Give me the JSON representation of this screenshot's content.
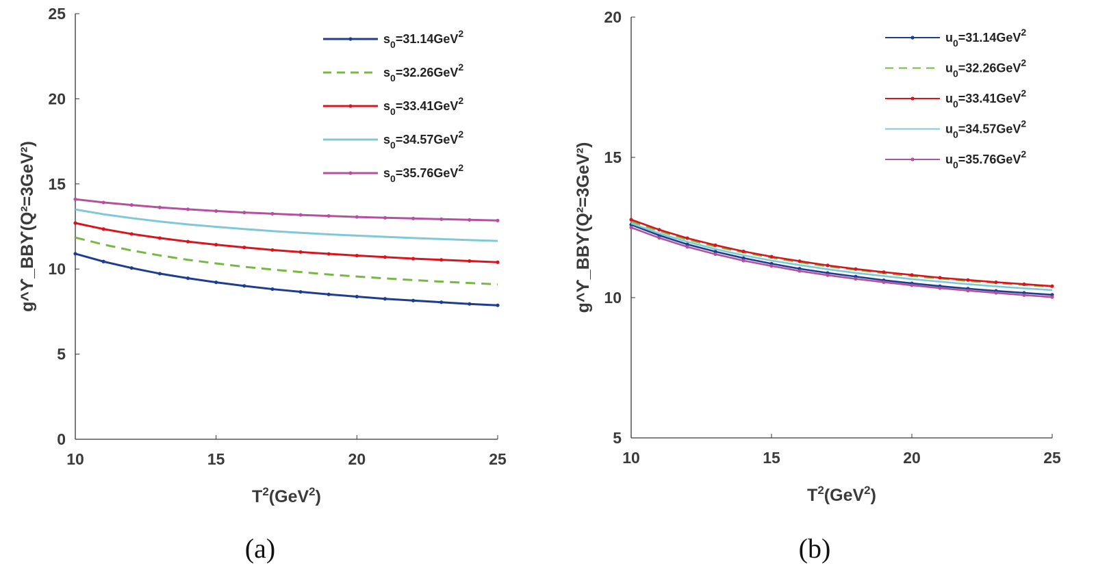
{
  "chart_data": [
    {
      "type": "line",
      "panel": "(a)",
      "xlabel": "T²(GeV²)",
      "ylabel": "g^ϒ_BBϒ(Q²=3GeV²)",
      "xlim": [
        10,
        25
      ],
      "ylim": [
        0,
        25
      ],
      "xticks": [
        10,
        15,
        20,
        25
      ],
      "yticks": [
        0,
        5,
        10,
        15,
        20,
        25
      ],
      "legend": "top-right",
      "x": [
        10,
        11,
        12,
        13,
        14,
        15,
        16,
        17,
        18,
        19,
        20,
        21,
        22,
        23,
        24,
        25
      ],
      "series": [
        {
          "name": "s₀=31.14GeV²",
          "label_base": "s",
          "sub": "0",
          "label_val": "=31.14GeV",
          "color": "#1f3c8f",
          "style": "solid",
          "markers": true,
          "values": [
            10.9,
            10.44,
            10.06,
            9.73,
            9.46,
            9.22,
            9.01,
            8.82,
            8.66,
            8.51,
            8.38,
            8.25,
            8.15,
            8.05,
            7.95,
            7.87
          ]
        },
        {
          "name": "s₀=32.26GeV²",
          "label_base": "s",
          "sub": "0",
          "label_val": "=32.26GeV",
          "color": "#77b843",
          "style": "dashed",
          "markers": false,
          "values": [
            11.85,
            11.44,
            11.09,
            10.8,
            10.54,
            10.33,
            10.13,
            9.97,
            9.82,
            9.68,
            9.56,
            9.45,
            9.35,
            9.26,
            9.18,
            9.1
          ]
        },
        {
          "name": "s₀=33.41GeV²",
          "label_base": "s",
          "sub": "0",
          "label_val": "=33.41GeV",
          "color": "#d9141c",
          "style": "solid",
          "markers": true,
          "values": [
            12.7,
            12.35,
            12.06,
            11.82,
            11.61,
            11.43,
            11.27,
            11.12,
            11.0,
            10.89,
            10.79,
            10.7,
            10.61,
            10.54,
            10.47,
            10.4
          ]
        },
        {
          "name": "s₀=34.57GeV²",
          "label_base": "s",
          "sub": "0",
          "label_val": "=34.57GeV",
          "color": "#7ec8d8",
          "style": "solid",
          "markers": false,
          "values": [
            13.5,
            13.22,
            12.99,
            12.79,
            12.62,
            12.48,
            12.35,
            12.23,
            12.13,
            12.04,
            11.96,
            11.89,
            11.82,
            11.76,
            11.7,
            11.65
          ]
        },
        {
          "name": "s₀=35.76GeV²",
          "label_base": "s",
          "sub": "0",
          "label_val": "=35.76GeV",
          "color": "#b5509f",
          "style": "solid",
          "markers": true,
          "values": [
            14.1,
            13.91,
            13.76,
            13.62,
            13.51,
            13.41,
            13.32,
            13.25,
            13.18,
            13.12,
            13.06,
            13.01,
            12.97,
            12.93,
            12.89,
            12.85
          ]
        }
      ]
    },
    {
      "type": "line",
      "panel": "(b)",
      "xlabel": "T²(GeV²)",
      "ylabel": "g^ϒ_BBϒ(Q²=3GeV²)",
      "xlim": [
        10,
        25
      ],
      "ylim": [
        5,
        20
      ],
      "xticks": [
        10,
        15,
        20,
        25
      ],
      "yticks": [
        5,
        10,
        15,
        20
      ],
      "legend": "top-right",
      "x": [
        10,
        11,
        12,
        13,
        14,
        15,
        16,
        17,
        18,
        19,
        20,
        21,
        22,
        23,
        24,
        25
      ],
      "series": [
        {
          "name": "u₀=31.14GeV²",
          "label_base": "u",
          "sub": "0",
          "label_val": "=31.14GeV",
          "color": "#1f3c8f",
          "style": "solid",
          "markers": true,
          "values": [
            12.6,
            12.22,
            11.9,
            11.64,
            11.41,
            11.21,
            11.03,
            10.88,
            10.75,
            10.62,
            10.51,
            10.41,
            10.32,
            10.24,
            10.17,
            10.1
          ]
        },
        {
          "name": "u₀=32.26GeV²",
          "label_base": "u",
          "sub": "0",
          "label_val": "=32.26GeV",
          "color": "#77b843",
          "style": "dashed",
          "markers": false,
          "values": [
            12.72,
            12.37,
            12.07,
            11.82,
            11.61,
            11.42,
            11.26,
            11.11,
            10.99,
            10.87,
            10.77,
            10.68,
            10.59,
            10.52,
            10.45,
            10.38
          ]
        },
        {
          "name": "u₀=33.41GeV²",
          "label_base": "u",
          "sub": "0",
          "label_val": "=33.41GeV",
          "color": "#d9141c",
          "style": "solid",
          "markers": true,
          "values": [
            12.78,
            12.42,
            12.12,
            11.87,
            11.65,
            11.46,
            11.3,
            11.15,
            11.02,
            10.91,
            10.81,
            10.71,
            10.63,
            10.55,
            10.48,
            10.41
          ]
        },
        {
          "name": "u₀=34.57GeV²",
          "label_base": "u",
          "sub": "0",
          "label_val": "=34.57GeV",
          "color": "#7ec8d8",
          "style": "solid",
          "markers": false,
          "values": [
            12.65,
            12.29,
            11.99,
            11.73,
            11.51,
            11.32,
            11.16,
            11.01,
            10.88,
            10.77,
            10.66,
            10.57,
            10.48,
            10.4,
            10.33,
            10.27
          ]
        },
        {
          "name": "u₀=35.76GeV²",
          "label_base": "u",
          "sub": "0",
          "label_val": "=35.76GeV",
          "color": "#b5509f",
          "style": "solid",
          "markers": true,
          "values": [
            12.5,
            12.13,
            11.81,
            11.55,
            11.32,
            11.13,
            10.95,
            10.8,
            10.67,
            10.55,
            10.44,
            10.34,
            10.25,
            10.17,
            10.09,
            10.02
          ]
        }
      ]
    }
  ]
}
